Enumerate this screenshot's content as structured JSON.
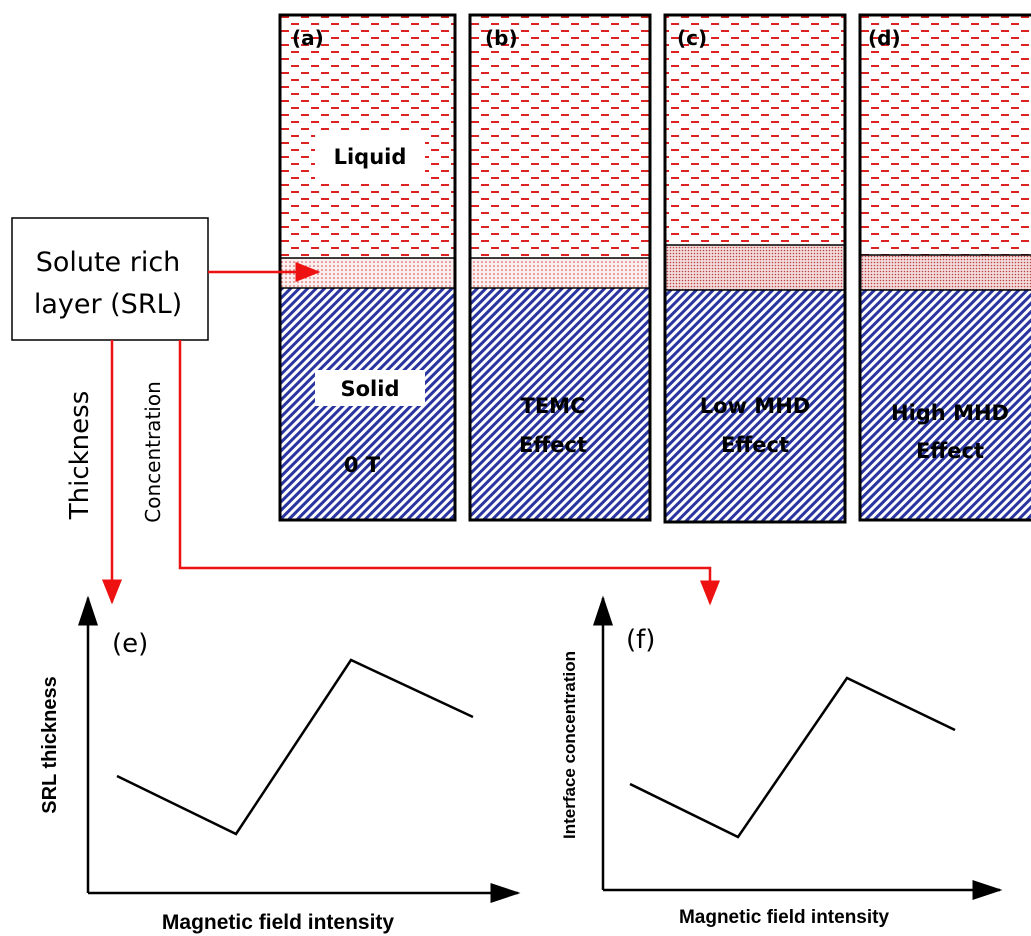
{
  "panels": [
    {
      "label": "(a)",
      "liquid_text": "Liquid",
      "solid_text": "Solid",
      "field_text": "0 T"
    },
    {
      "label": "(b)",
      "effect_lines": [
        "TEMC",
        "Effect"
      ]
    },
    {
      "label": "(c)",
      "effect_lines": [
        "Low MHD",
        "Effect"
      ]
    },
    {
      "label": "(d)",
      "effect_lines": [
        "High MHD",
        "Effect"
      ]
    }
  ],
  "srl_box": {
    "lines": [
      "Solute rich",
      "layer (SRL)"
    ]
  },
  "arrows": {
    "thickness": "Thickness",
    "concentration": "Concentration"
  },
  "plots": [
    {
      "label": "(e)",
      "y_axis": "SRL thickness",
      "x_axis": "Magnetic field intensity"
    },
    {
      "label": "(f)",
      "y_axis": "Interface concentration",
      "x_axis": "Magnetic field intensity"
    }
  ]
}
